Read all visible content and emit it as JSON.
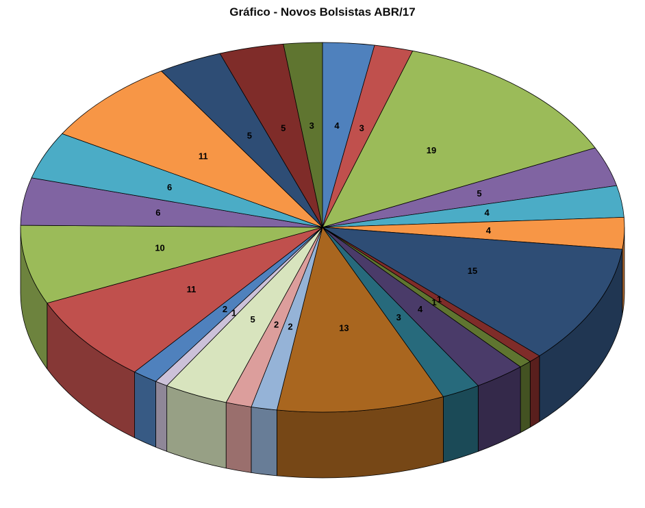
{
  "chart_data": {
    "type": "pie",
    "style": "3d",
    "title": "Gráfico - Novos Bolsistas ABR/17",
    "direction": "clockwise",
    "start_angle_deg": 0,
    "legend": false,
    "data_labels": "values",
    "background": "#FFFFFF",
    "values": [
      4,
      3,
      19,
      5,
      4,
      4,
      15,
      1,
      1,
      4,
      3,
      13,
      2,
      2,
      5,
      1,
      2,
      11,
      10,
      6,
      6,
      11,
      5,
      5,
      3
    ],
    "colors": [
      "#4F81BD",
      "#C0504D",
      "#9BBB59",
      "#8064A2",
      "#4BACC6",
      "#F79646",
      "#2E4D75",
      "#7F2C29",
      "#5F7530",
      "#4A3B69",
      "#276A7C",
      "#A9661F",
      "#95B3D7",
      "#DC9E9C",
      "#D8E4BE",
      "#CCC1D9",
      "#4F81BD",
      "#C0504D",
      "#9BBB59",
      "#8064A2",
      "#4BACC6",
      "#F79646",
      "#2E4D75",
      "#7F2C29",
      "#5F7530"
    ]
  }
}
